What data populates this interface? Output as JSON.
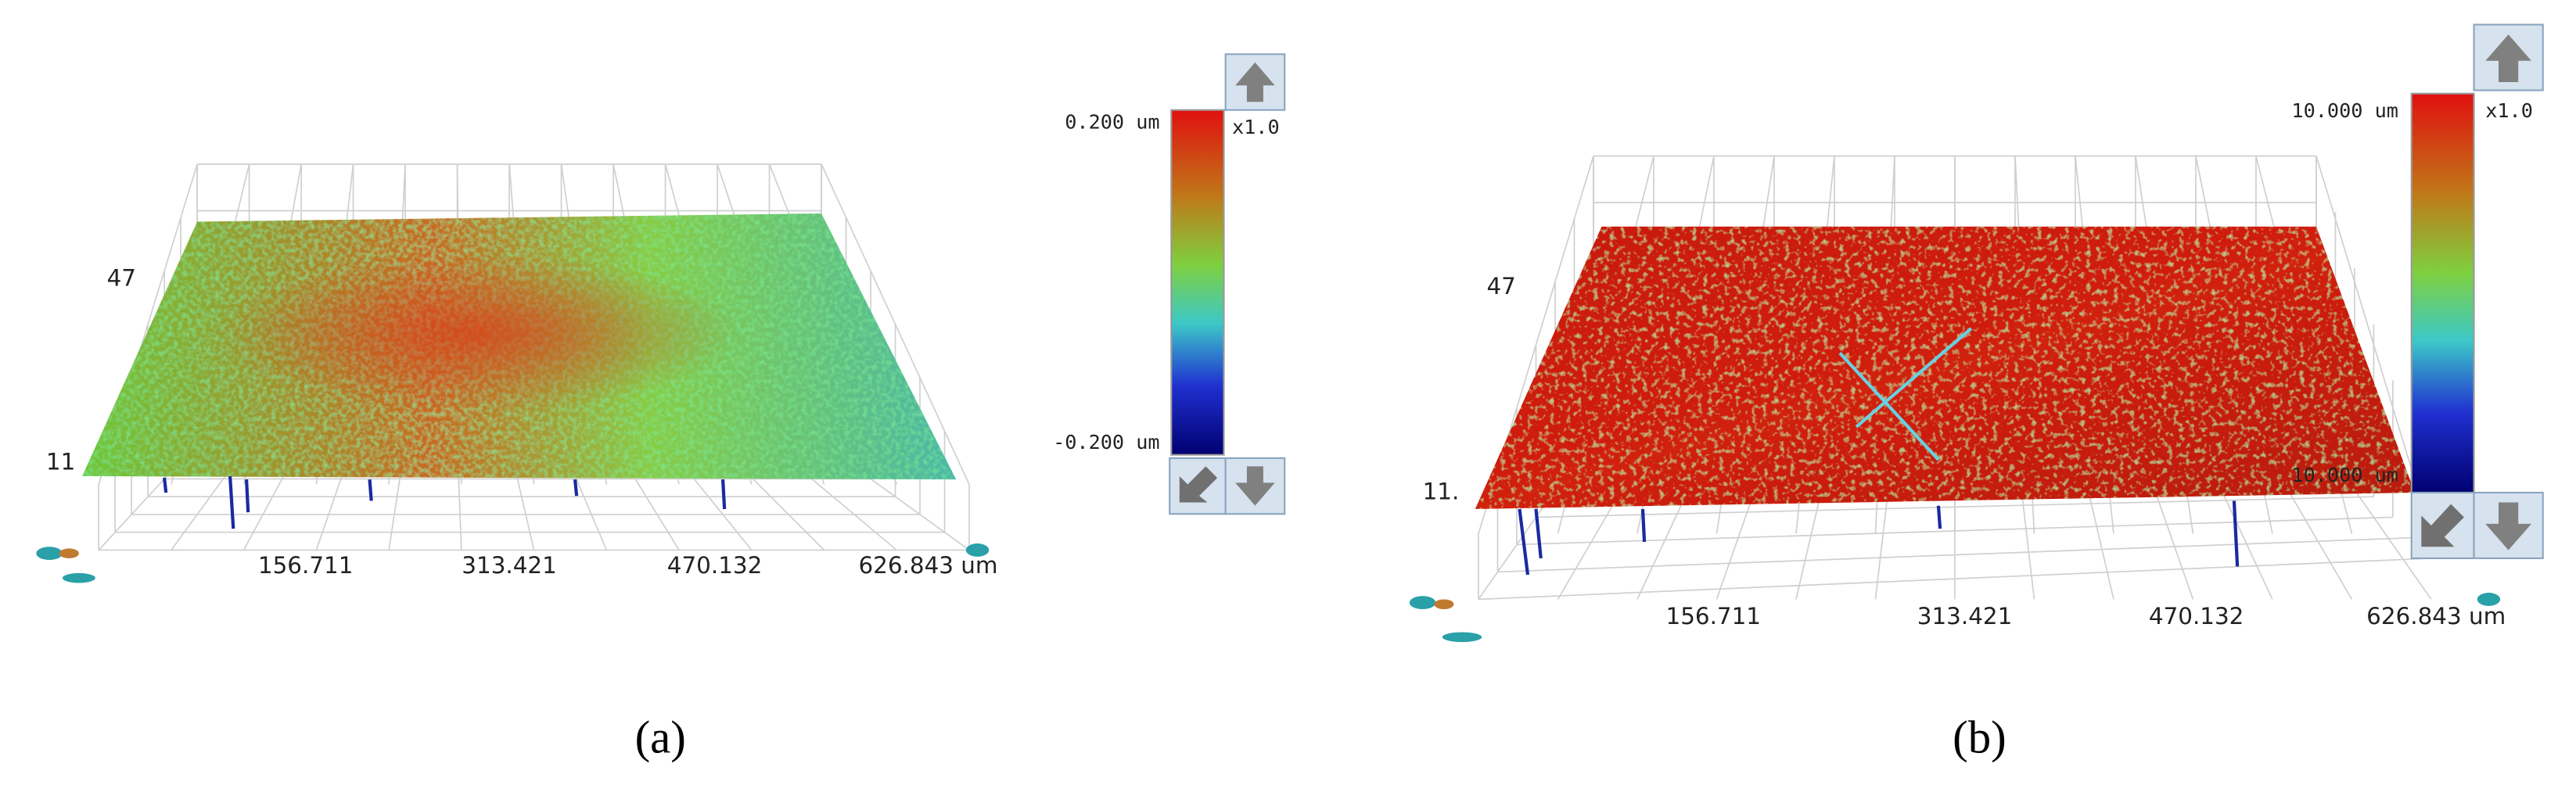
{
  "panels": [
    {
      "caption": "(a)",
      "colorbar": {
        "max_label": "0.200 um",
        "min_label": "-0.200 um",
        "zoom": "x1.0"
      },
      "y_labels": [
        "47",
        "11"
      ],
      "x_ticks": [
        "156.711",
        "313.421",
        "470.132",
        "626.843 um"
      ]
    },
    {
      "caption": "(b)",
      "colorbar": {
        "max_label": "10.000 um",
        "min_label": "10.000 um",
        "zoom": "x1.0"
      },
      "y_labels": [
        "47",
        "11."
      ],
      "x_ticks": [
        "156.711",
        "313.421",
        "470.132",
        "626.843 um"
      ]
    }
  ]
}
